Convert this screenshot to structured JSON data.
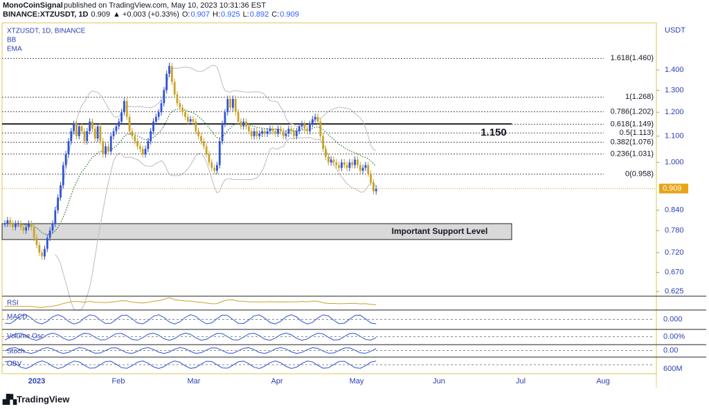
{
  "header": {
    "publisher": "MonoCoinSignal",
    "published": "published on TradingView.com, May 10, 2023 10:31:36 EST",
    "symbol": "BINANCE:XTZUSDT, 1D",
    "last": "0.909",
    "change": "▲ +0.003 (+0.33%)",
    "ohlc": [
      {
        "key": "O:",
        "val": "0.907"
      },
      {
        "key": "H:",
        "val": "0.925"
      },
      {
        "key": "L:",
        "val": "0.892"
      },
      {
        "key": "C:",
        "val": "0.909"
      }
    ]
  },
  "legend": {
    "symbol": "XTZUSDT, 1D, BINANCE",
    "indicators": [
      "BB",
      "EMA"
    ]
  },
  "chart": {
    "currency": "USDT",
    "price_ticks": [
      {
        "value": 1.4,
        "label": "1.400"
      },
      {
        "value": 1.3,
        "label": "1.300"
      },
      {
        "value": 1.2,
        "label": "1.200"
      },
      {
        "value": 1.1,
        "label": "1.100"
      },
      {
        "value": 1.0,
        "label": "1.000"
      },
      {
        "value": 0.84,
        "label": "0.840"
      },
      {
        "value": 0.78,
        "label": "0.780"
      },
      {
        "value": 0.72,
        "label": "0.720"
      },
      {
        "value": 0.67,
        "label": "0.670"
      },
      {
        "value": 0.625,
        "label": "0.625"
      }
    ],
    "last_price": {
      "value": 0.909,
      "label": "0.909"
    },
    "fib_levels": [
      {
        "value": 1.46,
        "label": "1.618(1.460)"
      },
      {
        "value": 1.268,
        "label": "1(1.268)"
      },
      {
        "value": 1.202,
        "label": "0.786(1.202)"
      },
      {
        "value": 1.149,
        "label": "0.618(1.149)"
      },
      {
        "value": 1.113,
        "label": "0.5(1.113)"
      },
      {
        "value": 1.076,
        "label": "0.382(1.076)"
      },
      {
        "value": 1.031,
        "label": "0.236(1.031)"
      },
      {
        "value": 0.958,
        "label": "0(0.958)"
      }
    ],
    "key_level": {
      "value": 1.15,
      "label": "1.150"
    },
    "support": {
      "top": 0.8,
      "bottom": 0.755,
      "label": "Important Support Level"
    },
    "closes": [
      0.8,
      0.81,
      0.8,
      0.79,
      0.8,
      0.8,
      0.79,
      0.78,
      0.79,
      0.8,
      0.79,
      0.76,
      0.74,
      0.72,
      0.71,
      0.73,
      0.76,
      0.78,
      0.8,
      0.84,
      0.88,
      0.92,
      0.99,
      1.03,
      1.08,
      1.12,
      1.15,
      1.1,
      1.14,
      1.12,
      1.08,
      1.12,
      1.16,
      1.13,
      1.09,
      1.14,
      1.08,
      1.03,
      1.06,
      1.04,
      1.1,
      1.12,
      1.14,
      1.16,
      1.2,
      1.25,
      1.18,
      1.12,
      1.1,
      1.08,
      1.06,
      1.05,
      1.03,
      1.05,
      1.08,
      1.12,
      1.16,
      1.18,
      1.2,
      1.24,
      1.3,
      1.38,
      1.42,
      1.34,
      1.28,
      1.24,
      1.22,
      1.2,
      1.18,
      1.16,
      1.17,
      1.16,
      1.12,
      1.1,
      1.08,
      1.06,
      1.03,
      1.0,
      0.98,
      0.97,
      0.99,
      1.08,
      1.15,
      1.2,
      1.26,
      1.22,
      1.26,
      1.2,
      1.16,
      1.14,
      1.16,
      1.14,
      1.12,
      1.1,
      1.12,
      1.1,
      1.11,
      1.12,
      1.11,
      1.12,
      1.13,
      1.12,
      1.11,
      1.13,
      1.12,
      1.1,
      1.11,
      1.13,
      1.12,
      1.1,
      1.12,
      1.14,
      1.15,
      1.13,
      1.12,
      1.15,
      1.17,
      1.18,
      1.16,
      1.1,
      1.05,
      1.02,
      1.0,
      1.01,
      1.0,
      0.99,
      0.98,
      1.0,
      0.99,
      0.98,
      1.0,
      0.99,
      1.01,
      0.99,
      0.97,
      0.98,
      0.99,
      0.96,
      0.93,
      0.9,
      0.909
    ],
    "months": [
      "2023",
      "Feb",
      "Mar",
      "Apr",
      "May",
      "Jun",
      "Jul",
      "Aug"
    ],
    "panes": [
      {
        "name": "RSI",
        "axis": ""
      },
      {
        "name": "MACD",
        "axis": "0.000"
      },
      {
        "name": "Volume Osc",
        "axis": "0.00%"
      },
      {
        "name": "Stoch",
        "axis": "0.00"
      },
      {
        "name": "OBV",
        "axis": "600M"
      }
    ]
  },
  "footer": {
    "brand": "TradingView"
  }
}
